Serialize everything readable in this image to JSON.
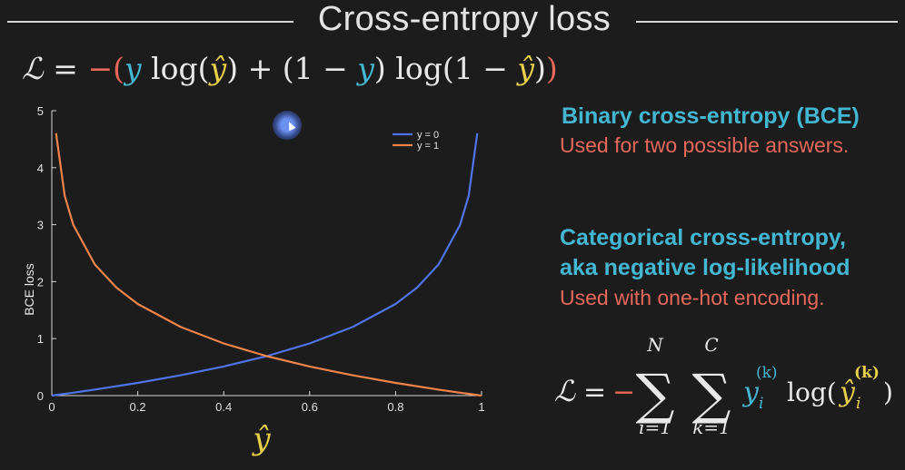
{
  "slide_title": "Cross-entropy loss",
  "top_formula": {
    "L": "ℒ",
    "eq": "=",
    "minus": "−",
    "lp": "(",
    "y1": "y",
    "log1": "log(",
    "yhat1": "ŷ",
    "rp1": ")",
    "plus": "+",
    "one_minus_y_open": "(1 −",
    "y2": "y",
    "one_minus_y_close": ")",
    "log2": "log(1 −",
    "yhat2": "ŷ",
    "rp2": ")",
    "rp_outer": ")"
  },
  "right_panel": {
    "bce_title": "Binary cross-entropy (BCE)",
    "bce_note": "Used for two possible answers.",
    "cce_title_line1": "Categorical cross-entropy,",
    "cce_title_line2": "aka negative log-likelihood",
    "cce_note": "Used with one-hot encoding."
  },
  "bottom_formula": {
    "L": "ℒ",
    "eq": "=",
    "minus": "−",
    "sum_i_top": "N",
    "sum_i_bottom": "i=1",
    "sum_k_top": "C",
    "sum_k_bottom": "k=1",
    "sigma": "∑",
    "y": "y",
    "y_sub": "i",
    "y_sup": "(k)",
    "log_open": "log(",
    "yhat": "ŷ",
    "yhat_sub": "i",
    "yhat_sup": "(k)",
    "close": ")"
  },
  "colors": {
    "y0_line": "#4f74e8",
    "y1_line": "#f0844a",
    "cyan": "#45b7d3",
    "red": "#e5685a",
    "yellow": "#e6d04a"
  },
  "chart_data": {
    "type": "line",
    "xlabel": "ŷ",
    "ylabel": "BCE loss",
    "xlim": [
      0,
      1
    ],
    "ylim": [
      0,
      5
    ],
    "x_ticks": [
      "0",
      "0.2",
      "0.4",
      "0.6",
      "0.8",
      "1"
    ],
    "y_ticks": [
      "0",
      "1",
      "2",
      "3",
      "4",
      "5"
    ],
    "legend_position": "top-right",
    "series": [
      {
        "name": "y = 0",
        "x": [
          0.0,
          0.05,
          0.1,
          0.2,
          0.3,
          0.4,
          0.5,
          0.6,
          0.7,
          0.8,
          0.85,
          0.9,
          0.95,
          0.97,
          0.99
        ],
        "y": [
          0.0,
          0.051,
          0.105,
          0.223,
          0.357,
          0.511,
          0.693,
          0.916,
          1.204,
          1.609,
          1.897,
          2.303,
          2.996,
          3.507,
          4.605
        ]
      },
      {
        "name": "y = 1",
        "x": [
          0.01,
          0.03,
          0.05,
          0.1,
          0.15,
          0.2,
          0.3,
          0.4,
          0.5,
          0.6,
          0.7,
          0.8,
          0.9,
          0.95,
          1.0
        ],
        "y": [
          4.605,
          3.507,
          2.996,
          2.303,
          1.897,
          1.609,
          1.204,
          0.916,
          0.693,
          0.511,
          0.357,
          0.223,
          0.105,
          0.051,
          0.0
        ]
      }
    ]
  }
}
